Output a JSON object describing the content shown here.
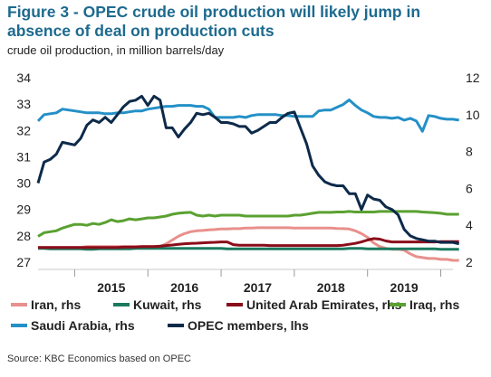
{
  "title": "Figure 3 - OPEC crude oil production will likely jump in absence of deal on production cuts",
  "subtitle": "crude oil production, in million barrels/day",
  "source": "Source: KBC Economics based on OPEC",
  "chart_data": {
    "type": "line",
    "title": "Figure 3 - OPEC crude oil production will likely jump in absence of deal on production cuts",
    "ylabel": "crude oil production, in million barrels/day",
    "x_start": "2014-07",
    "x_end": "2020-03",
    "x_step": "month",
    "x_ticks": [
      "2015",
      "2016",
      "2017",
      "2018",
      "2019"
    ],
    "y_left": {
      "label": "lhs",
      "ylim": [
        27,
        34
      ],
      "ticks": [
        "27",
        "28",
        "29",
        "30",
        "31",
        "32",
        "33",
        "34"
      ]
    },
    "y_right": {
      "label": "rhs",
      "ylim": [
        2,
        12
      ],
      "ticks": [
        "2",
        "4",
        "6",
        "8",
        "10",
        "12"
      ]
    },
    "grid": false,
    "legend_position": "bottom",
    "series": [
      {
        "name": "Iran, rhs",
        "axis": "rhs",
        "color": "#e8908c",
        "values": [
          2.8,
          2.8,
          2.8,
          2.8,
          2.8,
          2.8,
          2.8,
          2.8,
          2.85,
          2.85,
          2.85,
          2.85,
          2.85,
          2.85,
          2.85,
          2.85,
          2.85,
          2.85,
          2.85,
          2.85,
          2.85,
          3.0,
          3.2,
          3.4,
          3.55,
          3.65,
          3.7,
          3.72,
          3.75,
          3.77,
          3.8,
          3.8,
          3.82,
          3.82,
          3.85,
          3.85,
          3.87,
          3.87,
          3.87,
          3.87,
          3.87,
          3.87,
          3.85,
          3.85,
          3.85,
          3.85,
          3.85,
          3.85,
          3.85,
          3.83,
          3.82,
          3.8,
          3.7,
          3.55,
          3.35,
          3.05,
          2.85,
          2.75,
          2.7,
          2.7,
          2.65,
          2.45,
          2.3,
          2.25,
          2.2,
          2.2,
          2.15,
          2.15,
          2.1,
          2.1
        ]
      },
      {
        "name": "Kuwait, rhs",
        "axis": "rhs",
        "color": "#1a7a5e",
        "values": [
          2.75,
          2.75,
          2.72,
          2.72,
          2.72,
          2.72,
          2.72,
          2.72,
          2.7,
          2.7,
          2.72,
          2.72,
          2.72,
          2.72,
          2.72,
          2.72,
          2.75,
          2.75,
          2.75,
          2.75,
          2.75,
          2.75,
          2.75,
          2.75,
          2.75,
          2.75,
          2.75,
          2.75,
          2.75,
          2.75,
          2.75,
          2.72,
          2.72,
          2.72,
          2.72,
          2.72,
          2.72,
          2.72,
          2.72,
          2.72,
          2.72,
          2.72,
          2.72,
          2.72,
          2.72,
          2.72,
          2.72,
          2.72,
          2.72,
          2.72,
          2.72,
          2.75,
          2.75,
          2.75,
          2.72,
          2.72,
          2.72,
          2.72,
          2.72,
          2.72,
          2.72,
          2.72,
          2.72,
          2.72,
          2.72,
          2.72,
          2.7,
          2.7,
          2.7,
          2.7
        ]
      },
      {
        "name": "United Arab Emirates, rhs",
        "axis": "rhs",
        "color": "#8b0d1a",
        "values": [
          2.8,
          2.8,
          2.8,
          2.8,
          2.8,
          2.8,
          2.8,
          2.8,
          2.8,
          2.8,
          2.8,
          2.8,
          2.8,
          2.8,
          2.82,
          2.82,
          2.82,
          2.85,
          2.85,
          2.85,
          2.87,
          2.9,
          2.93,
          2.97,
          3.0,
          3.02,
          3.03,
          3.05,
          3.07,
          3.08,
          3.1,
          3.1,
          2.95,
          2.92,
          2.92,
          2.92,
          2.92,
          2.92,
          2.9,
          2.9,
          2.9,
          2.9,
          2.9,
          2.9,
          2.9,
          2.9,
          2.9,
          2.9,
          2.9,
          2.9,
          2.92,
          2.97,
          3.02,
          3.1,
          3.2,
          3.28,
          3.25,
          3.15,
          3.1,
          3.1,
          3.1,
          3.1,
          3.1,
          3.1,
          3.1,
          3.1,
          3.12,
          3.12,
          3.12,
          3.12
        ]
      },
      {
        "name": "Iraq, rhs",
        "axis": "rhs",
        "color": "#5aa131",
        "values": [
          3.4,
          3.6,
          3.65,
          3.7,
          3.85,
          3.95,
          4.05,
          4.05,
          4.0,
          4.1,
          4.05,
          4.15,
          4.3,
          4.2,
          4.25,
          4.35,
          4.3,
          4.35,
          4.4,
          4.4,
          4.45,
          4.5,
          4.6,
          4.65,
          4.68,
          4.7,
          4.55,
          4.5,
          4.55,
          4.5,
          4.55,
          4.55,
          4.55,
          4.55,
          4.5,
          4.5,
          4.5,
          4.5,
          4.5,
          4.5,
          4.5,
          4.5,
          4.55,
          4.55,
          4.6,
          4.65,
          4.7,
          4.7,
          4.7,
          4.72,
          4.72,
          4.75,
          4.72,
          4.72,
          4.72,
          4.72,
          4.75,
          4.75,
          4.75,
          4.75,
          4.75,
          4.75,
          4.75,
          4.72,
          4.7,
          4.68,
          4.65,
          4.6,
          4.6,
          4.6
        ]
      },
      {
        "name": "Saudi Arabia, rhs",
        "axis": "rhs",
        "color": "#2490c7",
        "values": [
          9.65,
          10.0,
          10.05,
          10.1,
          10.3,
          10.25,
          10.2,
          10.15,
          10.1,
          10.1,
          10.1,
          10.05,
          10.05,
          10.1,
          10.1,
          10.15,
          10.2,
          10.2,
          10.3,
          10.35,
          10.4,
          10.45,
          10.45,
          10.5,
          10.5,
          10.5,
          10.45,
          10.45,
          10.3,
          9.85,
          9.85,
          9.85,
          9.85,
          9.9,
          9.85,
          9.95,
          10.0,
          10.0,
          10.0,
          10.0,
          9.95,
          9.95,
          9.9,
          9.9,
          9.9,
          9.9,
          10.2,
          10.25,
          10.25,
          10.4,
          10.55,
          10.8,
          10.5,
          10.25,
          10.1,
          9.9,
          9.85,
          9.85,
          9.8,
          9.85,
          9.7,
          9.8,
          9.65,
          9.1,
          9.95,
          9.9,
          9.8,
          9.75,
          9.75,
          9.7
        ]
      },
      {
        "name": "OPEC members, lhs",
        "axis": "lhs",
        "color": "#0d2a4a",
        "values": [
          30.0,
          30.8,
          30.9,
          31.1,
          31.55,
          31.5,
          31.45,
          31.7,
          32.2,
          32.4,
          32.3,
          32.5,
          32.3,
          32.6,
          32.9,
          33.1,
          33.15,
          33.3,
          32.95,
          33.3,
          33.15,
          32.1,
          32.1,
          31.75,
          32.05,
          32.3,
          32.65,
          32.6,
          32.65,
          32.5,
          32.3,
          32.3,
          32.25,
          32.15,
          32.15,
          31.9,
          32.0,
          32.15,
          32.3,
          32.3,
          32.5,
          32.65,
          32.7,
          32.1,
          31.5,
          30.65,
          30.3,
          30.05,
          29.95,
          29.9,
          29.9,
          29.6,
          29.6,
          29.0,
          29.55,
          29.4,
          29.35,
          29.1,
          29.0,
          28.8,
          28.25,
          28.0,
          27.9,
          27.85,
          27.8,
          27.8,
          27.75,
          27.75,
          27.75,
          27.7
        ]
      }
    ]
  }
}
